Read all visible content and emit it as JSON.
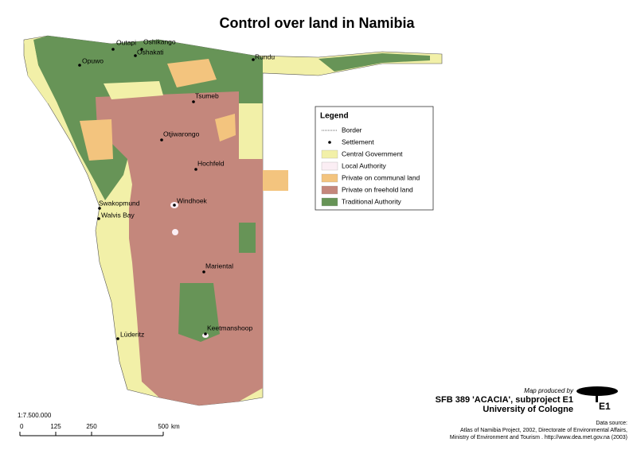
{
  "title": "Control over land in Namibia",
  "settlements": [
    "Outapi",
    "Oshikango",
    "Oshakati",
    "Opuwo",
    "Rundu",
    "Tsumeb",
    "Otjiwarongo",
    "Hochfeld",
    "Windhoek",
    "Swakopmund",
    "Walvis Bay",
    "Mariental",
    "Keetmanshoop",
    "Lüderitz"
  ],
  "legend": {
    "title": "Legend",
    "items": [
      {
        "label": "Border"
      },
      {
        "label": "Settlement"
      },
      {
        "label": "Central Government",
        "color": "#f2f0a8"
      },
      {
        "label": "Local Authority",
        "color": "#fbeef4"
      },
      {
        "label": "Private on communal land",
        "color": "#f3c47e"
      },
      {
        "label": "Private on freehold land",
        "color": "#c4877c"
      },
      {
        "label": "Traditional Authority",
        "color": "#679457"
      }
    ]
  },
  "scale": {
    "ratio": "1:7.500.000",
    "ticks": [
      0,
      125,
      250,
      500
    ],
    "unit": "km"
  },
  "credits": {
    "produced": "Map produced by",
    "project": "SFB 389 'ACACIA', subproject E1",
    "university": "University of Cologne",
    "logo": "E1",
    "source": [
      "Data source:",
      "Atlas of Namibia Project, 2002, Directorate of Environmental Affairs,",
      "Ministry of Environment and Tourism . http://www.dea.met.gov.na (2003)"
    ]
  }
}
